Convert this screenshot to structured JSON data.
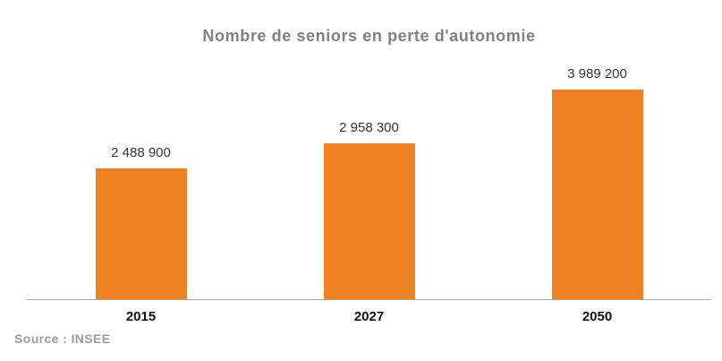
{
  "chart_data": {
    "type": "bar",
    "title": "Nombre de seniors en perte d'autonomie",
    "categories": [
      "2015",
      "2027",
      "2050"
    ],
    "values": [
      2488900,
      2958300,
      3989200
    ],
    "value_labels": [
      "2 488 900",
      "2 958 300",
      "3 989 200"
    ],
    "source": "Source : INSEE",
    "xlabel": "",
    "ylabel": "",
    "ylim": [
      0,
      4000000
    ],
    "grid": false,
    "legend": "none",
    "layout_hints": {
      "value_labels_position": "above-bars",
      "axis_line": "x-only"
    },
    "colors": {
      "bar": "#EE8122",
      "title": "#808080",
      "source": "#9B9B9B",
      "axis_line": "#A6A6A6",
      "value_label": "#333333",
      "category_label": "#111111",
      "background": "#FFFFFF"
    }
  }
}
